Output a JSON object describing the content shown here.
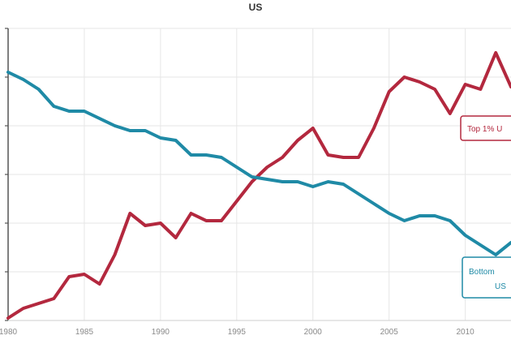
{
  "chart_data": {
    "type": "line",
    "title": "US",
    "xlabel": "",
    "ylabel": "",
    "xlim": [
      1980,
      2013
    ],
    "ylim": [
      0,
      6
    ],
    "grid": true,
    "x_ticks": [
      "1980",
      "1985",
      "1990",
      "1995",
      "2000",
      "2005",
      "2010"
    ],
    "x": [
      1980,
      1981,
      1982,
      1983,
      1984,
      1985,
      1986,
      1987,
      1988,
      1989,
      1990,
      1991,
      1992,
      1993,
      1994,
      1995,
      1996,
      1997,
      1998,
      1999,
      2000,
      2001,
      2002,
      2003,
      2004,
      2005,
      2006,
      2007,
      2008,
      2009,
      2010,
      2011,
      2012,
      2013
    ],
    "series": [
      {
        "name": "Top 1% ...",
        "color": "#b3283e",
        "values": [
          0.05,
          0.25,
          0.35,
          0.45,
          0.9,
          0.95,
          0.75,
          1.35,
          2.2,
          1.95,
          2.0,
          1.7,
          2.2,
          2.05,
          2.05,
          2.45,
          2.85,
          3.15,
          3.35,
          3.7,
          3.95,
          3.4,
          3.35,
          3.35,
          3.95,
          4.7,
          5.0,
          4.9,
          4.75,
          4.25,
          4.85,
          4.75,
          5.5,
          4.8
        ]
      },
      {
        "name": "Bottom ... US",
        "color": "#1f8aa6",
        "values": [
          5.1,
          4.95,
          4.75,
          4.4,
          4.3,
          4.3,
          4.15,
          4.0,
          3.9,
          3.9,
          3.75,
          3.7,
          3.4,
          3.4,
          3.35,
          3.15,
          2.95,
          2.9,
          2.85,
          2.85,
          2.75,
          2.85,
          2.8,
          2.6,
          2.4,
          2.2,
          2.05,
          2.15,
          2.15,
          2.05,
          1.75,
          1.55,
          1.35,
          1.6
        ]
      }
    ],
    "callouts": [
      {
        "series": 0,
        "line1": "Top 1% U",
        "line2": ""
      },
      {
        "series": 1,
        "line1": "Bottom",
        "line2": "US"
      }
    ]
  }
}
